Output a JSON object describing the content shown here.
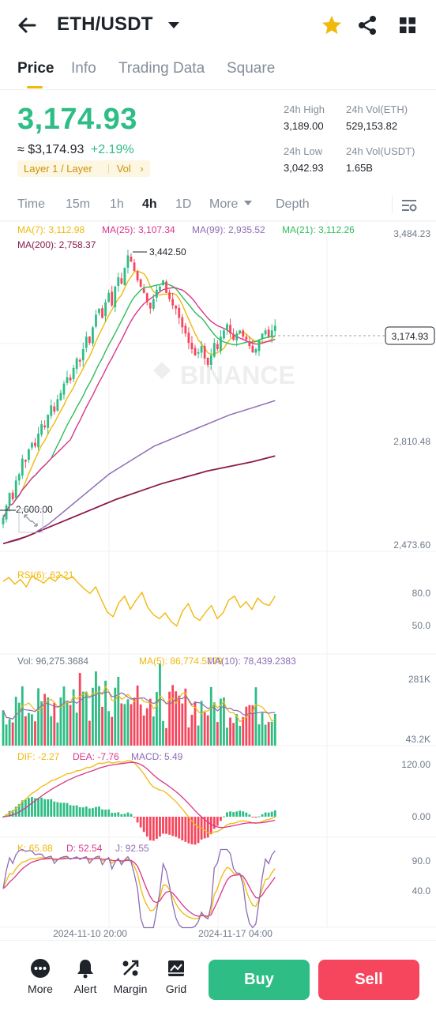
{
  "header": {
    "pair": "ETH/USDT",
    "icons": [
      "back-arrow-icon",
      "caret-down-icon",
      "star-icon",
      "share-icon",
      "grid-menu-icon"
    ],
    "star_color": "#f0b90b"
  },
  "tabs": [
    {
      "label": "Price",
      "active": true
    },
    {
      "label": "Info",
      "active": false
    },
    {
      "label": "Trading Data",
      "active": false
    },
    {
      "label": "Square",
      "active": false
    }
  ],
  "price": {
    "last": "3,174.93",
    "fiat": "≈ $3,174.93",
    "change": "+2.19%",
    "tag_label": "Layer 1 / Layer",
    "tag_vol": "Vol",
    "tag_chevron": "›"
  },
  "stats": {
    "high_label": "24h High",
    "high": "3,189.00",
    "vol_eth_label": "24h Vol(ETH)",
    "vol_eth": "529,153.82",
    "low_label": "24h Low",
    "low": "3,042.93",
    "vol_usdt_label": "24h Vol(USDT)",
    "vol_usdt": "1.65B"
  },
  "intervals": {
    "items": [
      {
        "label": "Time",
        "active": false
      },
      {
        "label": "15m",
        "active": false
      },
      {
        "label": "1h",
        "active": false
      },
      {
        "label": "4h",
        "active": true
      },
      {
        "label": "1D",
        "active": false
      },
      {
        "label": "More",
        "active": false
      },
      {
        "label": "Depth",
        "active": false
      }
    ]
  },
  "colors": {
    "up": "#2ebd85",
    "down": "#f6465d",
    "accent": "#f0b90b",
    "ma7": "#f0b90b",
    "ma25": "#d9368b",
    "ma99": "#8e6cb5",
    "ma21": "#2ebd5a",
    "ma200": "#8b1a4a"
  },
  "chart_data": {
    "type": "candlestick",
    "indicators": {
      "ma7": "MA(7): 3,112.98",
      "ma25": "MA(25): 3,107.34",
      "ma99": "MA(99): 2,935.52",
      "ma21": "MA(21): 3,112.26",
      "ma200": "MA(200): 2,758.37"
    },
    "price_axis": [
      "3,484.23",
      "2,810.48",
      "2,473.60"
    ],
    "ylim": [
      2473.6,
      3484.23
    ],
    "max_marker": "3,442.50",
    "min_marker": "2,600.00",
    "last_price": "3,174.93",
    "watermark": "BINANCE",
    "close": [
      2560,
      2600,
      2640,
      2620,
      2680,
      2700,
      2750,
      2740,
      2780,
      2800,
      2790,
      2830,
      2860,
      2850,
      2890,
      2920,
      2900,
      2940,
      2960,
      2990,
      3010,
      3000,
      3040,
      3070,
      3060,
      3100,
      3140,
      3120,
      3170,
      3210,
      3230,
      3200,
      3250,
      3280,
      3240,
      3300,
      3330,
      3310,
      3360,
      3400,
      3380,
      3350,
      3320,
      3300,
      3280,
      3250,
      3230,
      3260,
      3290,
      3300,
      3320,
      3280,
      3260,
      3240,
      3230,
      3200,
      3170,
      3150,
      3120,
      3100,
      3080,
      3090,
      3110,
      3070,
      3050,
      3080,
      3120,
      3100,
      3140,
      3160,
      3180,
      3150,
      3130,
      3150,
      3160,
      3140,
      3130,
      3110,
      3090,
      3100,
      3130,
      3150,
      3160,
      3140,
      3160,
      3174.93
    ],
    "ma99_path": [
      2478,
      2490,
      2510,
      2540,
      2580,
      2620,
      2660,
      2700,
      2730,
      2760,
      2790,
      2810,
      2830,
      2850,
      2870,
      2890,
      2905,
      2920,
      2935.52
    ],
    "ma200_path": [
      2478,
      2500,
      2530,
      2560,
      2590,
      2620,
      2645,
      2670,
      2690,
      2710,
      2725,
      2740,
      2758.37
    ],
    "rsi": {
      "label": "RSI(6): 62.21",
      "axis": [
        "80.0",
        "50.0"
      ],
      "values": [
        78,
        82,
        75,
        80,
        72,
        84,
        80,
        76,
        82,
        78,
        85,
        80,
        83,
        76,
        70,
        65,
        72,
        58,
        45,
        40,
        55,
        62,
        48,
        58,
        66,
        50,
        42,
        38,
        44,
        35,
        30,
        46,
        54,
        40,
        36,
        45,
        52,
        38,
        44,
        58,
        62,
        50,
        56,
        48,
        60,
        54,
        52,
        62.21
      ]
    },
    "volume": {
      "label": "Vol: 96,275.3684",
      "ma5": "MA(5): 86,774.5779",
      "ma10": "MA(10): 78,439.2383",
      "axis": [
        "281K",
        "43.2K"
      ]
    },
    "macd": {
      "dif": "DIF: -2.27",
      "dea": "DEA: -7.76",
      "macd": "MACD: 5.49",
      "axis": [
        "120.00",
        "0.00"
      ]
    },
    "kdj": {
      "k": "K: 65.88",
      "d": "D: 52.54",
      "j": "J: 92.55",
      "axis": [
        "90.0",
        "40.0"
      ]
    },
    "time_axis": [
      "2024-11-10 20:00",
      "2024-11-17 04:00"
    ]
  },
  "bottom": {
    "nav": [
      {
        "label": "More",
        "icon": "more-dots-icon"
      },
      {
        "label": "Alert",
        "icon": "bell-icon"
      },
      {
        "label": "Margin",
        "icon": "percent-icon"
      },
      {
        "label": "Grid",
        "icon": "grid-chart-icon"
      }
    ],
    "buy": "Buy",
    "sell": "Sell"
  }
}
